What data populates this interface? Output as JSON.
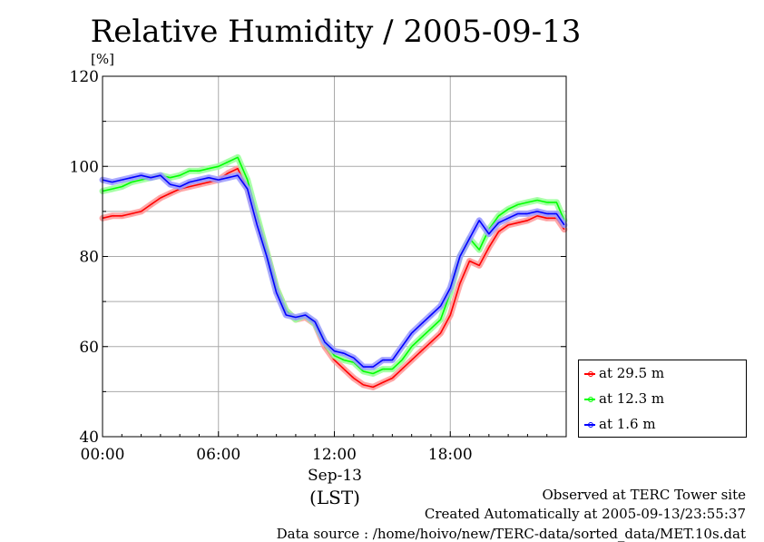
{
  "chart_data": {
    "type": "line",
    "title": "Relative Humidity / 2005-09-13",
    "ylabel": "[%]",
    "xlabel": "(LST)",
    "date_label": "Sep-13",
    "ylim": [
      40,
      120
    ],
    "yticks": [
      40,
      60,
      80,
      100,
      120
    ],
    "xlim": [
      0,
      24
    ],
    "xticks": [
      0,
      6,
      12,
      18
    ],
    "xtick_labels": [
      "00:00",
      "06:00",
      "12:00",
      "18:00"
    ],
    "grid": true,
    "legend_position": "right-bottom",
    "x": [
      0,
      0.5,
      1,
      1.5,
      2,
      2.5,
      3,
      3.5,
      4,
      4.5,
      5,
      5.5,
      6,
      6.5,
      7,
      7.5,
      8,
      8.5,
      9,
      9.5,
      10,
      10.5,
      11,
      11.5,
      12,
      12.5,
      13,
      13.5,
      14,
      14.5,
      15,
      15.5,
      16,
      16.5,
      17,
      17.5,
      18,
      18.5,
      19,
      19.5,
      20,
      20.5,
      21,
      21.5,
      22,
      22.5,
      23,
      23.5,
      23.9
    ],
    "series": [
      {
        "name": "at 29.5 m",
        "color": "#ff0000",
        "values": [
          88.5,
          89,
          89,
          89.5,
          90,
          91.5,
          93,
          94,
          95,
          95.5,
          96,
          96.5,
          97,
          98.5,
          99.5,
          95,
          88,
          81,
          73,
          68,
          66,
          66.5,
          65,
          60,
          57,
          55,
          53,
          51.5,
          51,
          52,
          53,
          55,
          57,
          59,
          61,
          63,
          67,
          74,
          79,
          78,
          82,
          85.5,
          87,
          87.5,
          88,
          89,
          88.5,
          88.5,
          86
        ]
      },
      {
        "name": "at 12.3 m",
        "color": "#00ff00",
        "values": [
          94.5,
          95,
          95.5,
          96.5,
          97,
          97.5,
          98,
          97.5,
          98,
          99,
          99,
          99.5,
          100,
          101,
          102,
          97,
          89,
          81,
          73,
          68,
          66,
          67,
          65,
          61,
          58,
          57,
          56.5,
          54.5,
          54,
          55,
          55,
          57,
          60,
          62,
          64,
          66,
          72,
          80,
          84,
          81.5,
          86,
          89,
          90.5,
          91.5,
          92,
          92.5,
          92,
          92,
          88
        ]
      },
      {
        "name": "at 1.6 m",
        "color": "#0000ff",
        "values": [
          97,
          96.5,
          97,
          97.5,
          98,
          97.5,
          98,
          96,
          95.5,
          96.5,
          97,
          97.5,
          97,
          97.5,
          98,
          95,
          87,
          80,
          72,
          67,
          66.5,
          67,
          65.5,
          61,
          59,
          58.5,
          57.5,
          55.5,
          55.5,
          57,
          57,
          60,
          63,
          65,
          67,
          69,
          73,
          80,
          84,
          88,
          85,
          87.5,
          88.5,
          89.5,
          89.5,
          90,
          89.5,
          89.5,
          87
        ]
      }
    ]
  },
  "footer": {
    "line1": "Observed at TERC Tower site",
    "line2": "Created Automatically at 2005-09-13/23:55:37",
    "line3": "Data source : /home/hoivo/new/TERC-data/sorted_data/MET.10s.dat"
  }
}
